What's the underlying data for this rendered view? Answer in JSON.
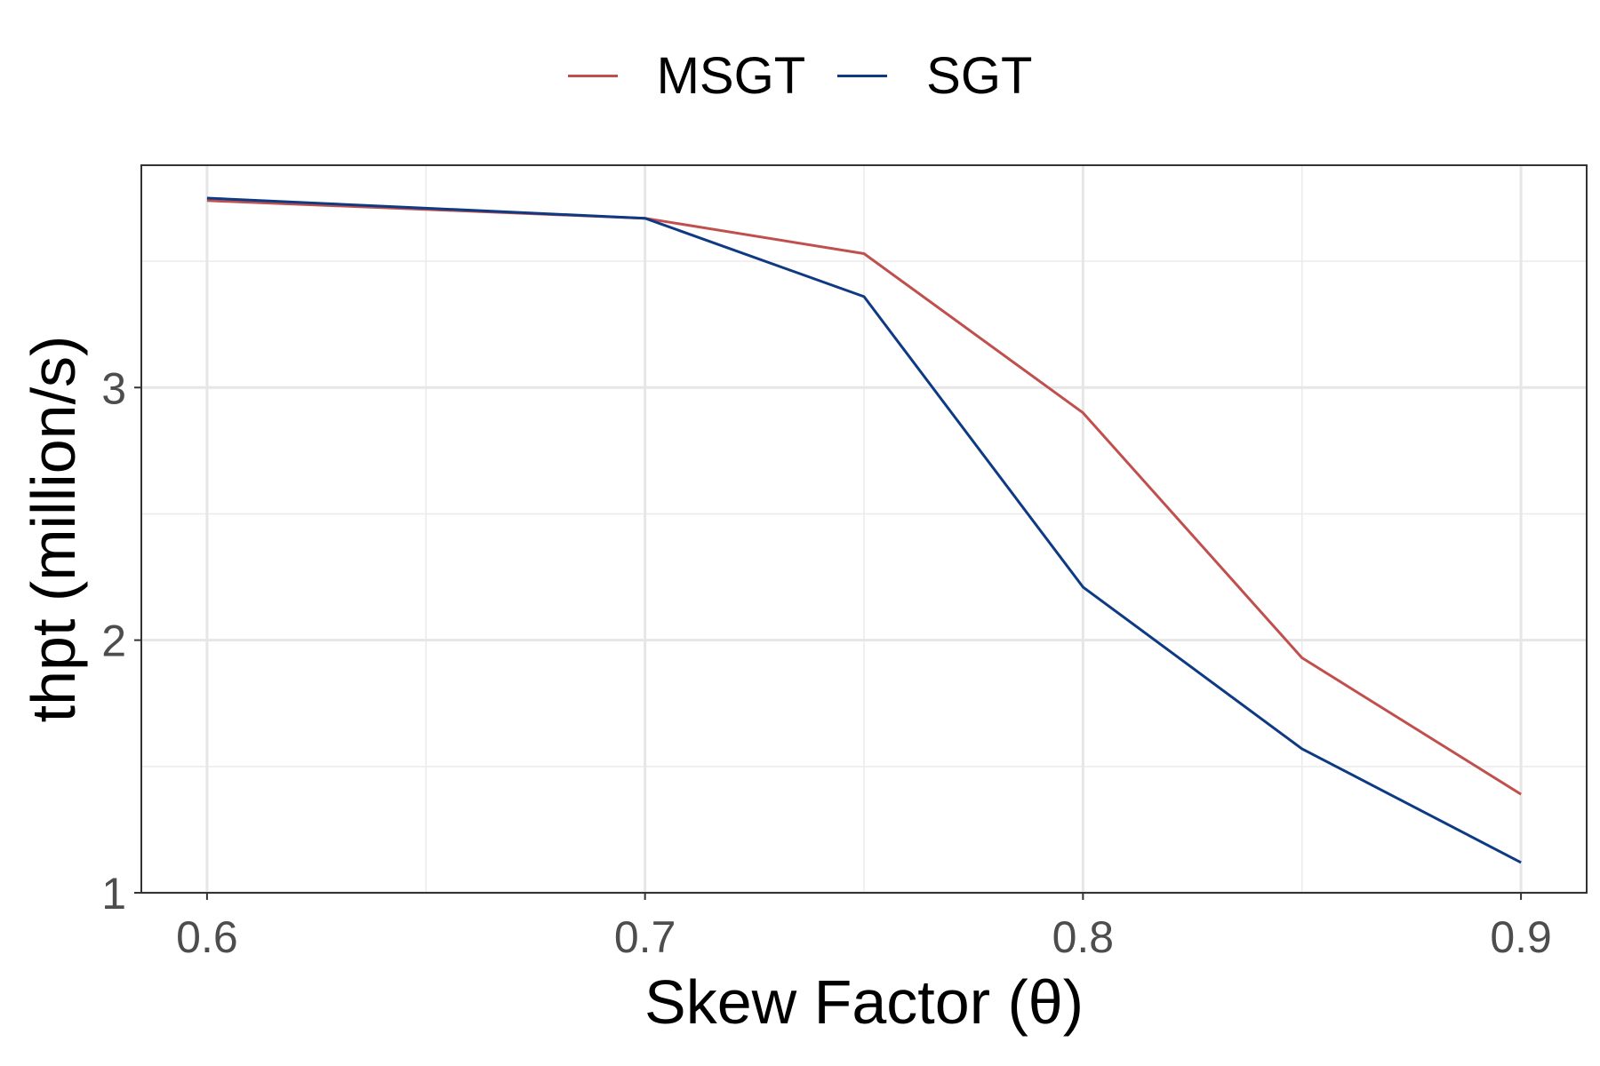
{
  "chart_data": {
    "type": "line",
    "xlabel": "Skew Factor (θ)",
    "ylabel": "thpt (million/s)",
    "xlim": [
      0.585,
      0.915
    ],
    "ylim": [
      1.0,
      3.88
    ],
    "x_ticks": [
      0.6,
      0.7,
      0.8,
      0.9
    ],
    "x_tick_labels": [
      "0.6",
      "0.7",
      "0.8",
      "0.9"
    ],
    "x_minor_ticks": [
      0.65,
      0.75,
      0.85
    ],
    "y_ticks": [
      1,
      2,
      3
    ],
    "y_tick_labels": [
      "1",
      "2",
      "3"
    ],
    "y_minor_ticks": [
      1.5,
      2.5,
      3.5
    ],
    "grid": true,
    "legend_position": "top",
    "x": [
      0.6,
      0.7,
      0.75,
      0.8,
      0.85,
      0.9
    ],
    "series": [
      {
        "name": "MSGT",
        "color": "#c0504d",
        "values": [
          3.74,
          3.67,
          3.53,
          2.9,
          1.93,
          1.39
        ]
      },
      {
        "name": "SGT",
        "color": "#0d3a82",
        "values": [
          3.75,
          3.67,
          3.36,
          2.21,
          1.57,
          1.12
        ]
      }
    ]
  }
}
